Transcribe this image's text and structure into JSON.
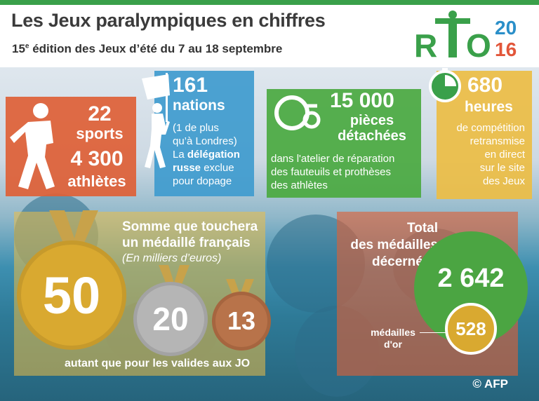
{
  "header": {
    "title": "Les Jeux paralympiques en chiffres",
    "subtitle_sup": "e",
    "subtitle_num": "15",
    "subtitle_rest": " édition des Jeux d’été du 7 au 18 septembre"
  },
  "logo": {
    "rio": "RIO",
    "year_top": "20",
    "year_bottom": "16"
  },
  "stats": {
    "sports": {
      "value": "22",
      "label": "sports"
    },
    "athletes": {
      "value": "4 300",
      "label": "athlètes"
    },
    "nations": {
      "value": "161",
      "label": "nations",
      "note1": "(1 de plus",
      "note2": "qu’à Londres)",
      "line3a": "La ",
      "line3b": "délégation",
      "line4a": "russe",
      "line4b": " exclue",
      "line5": "pour dopage"
    },
    "parts": {
      "value": "15 000",
      "label1": "pièces",
      "label2": "détachées",
      "desc1": "dans l'atelier de réparation",
      "desc2": "des fauteuils et prothèses",
      "desc3": "des athlètes"
    },
    "hours": {
      "value": "680",
      "label": "heures",
      "desc1": "de compétition",
      "desc2": "retransmise",
      "desc3": "en direct",
      "desc4": "sur le site",
      "desc5": "des Jeux"
    }
  },
  "prize": {
    "title1": "Somme que touchera",
    "title2": "un médaillé français",
    "unit": "(En milliers d’euros)",
    "gold": "50",
    "silver": "20",
    "bronze": "13",
    "footnote": "autant que pour les valides aux JO"
  },
  "medals": {
    "title1": "Total",
    "title2": "des médailles",
    "title3": "décernées",
    "total": "2 642",
    "gold_label1": "médailles",
    "gold_label2": "d'or",
    "gold": "528"
  },
  "credit": "© AFP",
  "colors": {
    "green": "#3aa04a",
    "orange": "#de5f36",
    "blue": "#3f9bce",
    "yellow": "#ecbd46",
    "gold": "#d9a930",
    "silver": "#b5b5b5",
    "bronze": "#b8734a"
  }
}
